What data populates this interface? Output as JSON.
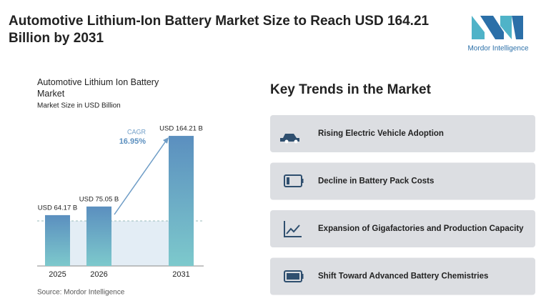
{
  "header": {
    "title": "Automotive Lithium-Ion Battery Market Size to Reach USD 164.21 Billion by 2031",
    "logo": "Mordor Intelligence"
  },
  "chart_data": {
    "type": "bar",
    "title": "Automotive Lithium Ion Battery Market",
    "subtitle": "Market Size in USD Billion",
    "categories": [
      "2025",
      "2026",
      "2031"
    ],
    "values": [
      64.17,
      75.05,
      164.21
    ],
    "value_labels": [
      "USD 64.17 B",
      "USD 75.05 B",
      "USD 164.21 B"
    ],
    "annotation": {
      "label": "CAGR",
      "value": "16.95%"
    },
    "source": "Source: Mordor Intelligence"
  },
  "trends": {
    "title": "Key Trends in the Market",
    "items": [
      "Rising Electric Vehicle Adoption",
      "Decline in Battery Pack Costs",
      "Expansion of Gigafactories and Production Capacity",
      "Shift Toward Advanced Battery Chemistries"
    ]
  }
}
